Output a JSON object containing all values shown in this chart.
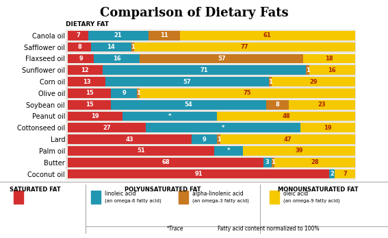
{
  "title": "Comparison of Dietary Fats",
  "dietary_fat_label": "DIETARY FAT",
  "oils": [
    "Canola oil",
    "Safflower oil",
    "Flaxseed oil",
    "Sunflower oil",
    "Corn oil",
    "Olive oil",
    "Soybean oil",
    "Peanut oil",
    "Cottonseed oil",
    "Lard",
    "Palm oil",
    "Butter",
    "Coconut oil"
  ],
  "saturated": [
    7,
    8,
    9,
    12,
    13,
    15,
    15,
    19,
    27,
    43,
    51,
    68,
    91
  ],
  "linoleic": [
    21,
    14,
    16,
    71,
    57,
    9,
    54,
    33,
    54,
    9,
    10,
    3,
    2
  ],
  "alphalinolenic": [
    11,
    1,
    57,
    1,
    1,
    1,
    8,
    0,
    0,
    1,
    0,
    1,
    0
  ],
  "oleic": [
    61,
    77,
    18,
    16,
    29,
    75,
    23,
    48,
    19,
    47,
    39,
    28,
    7
  ],
  "linoleic_trace": [
    false,
    false,
    false,
    false,
    false,
    false,
    false,
    true,
    true,
    false,
    true,
    false,
    false
  ],
  "alphalinolenic_trace": [
    false,
    false,
    false,
    false,
    false,
    false,
    false,
    false,
    false,
    false,
    true,
    false,
    false
  ],
  "color_saturated": "#d32f2f",
  "color_linoleic": "#2196b0",
  "color_alphalinolenic": "#c87820",
  "color_oleic": "#f5c800",
  "color_row_even": "#f0ede6",
  "color_row_odd": "#e6e3dc",
  "legend_sat_label": "SATURATED FAT",
  "legend_poly_label": "POLYUNSATURATED FAT",
  "legend_mono_label": "MONOUNSATURATED FAT",
  "legend_linoleic_line1": "linoleic acid",
  "legend_linoleic_line2": "(an omega-6 fatty acid)",
  "legend_alphalinolenic_line1": "alpha-linolenic acid",
  "legend_alphalinolenic_line2": "(an omega-3 fatty acid)",
  "legend_oleic_line1": "oleic acid",
  "legend_oleic_line2": "(an omega-9 fatty acid)",
  "footnote_trace": "*Trace",
  "footnote_norm": "Fatty acid content normalized to 100%"
}
